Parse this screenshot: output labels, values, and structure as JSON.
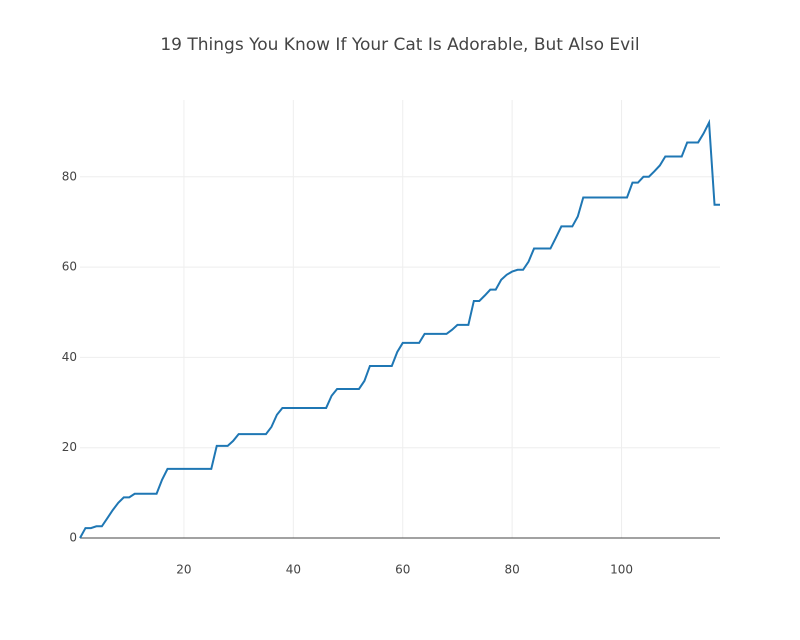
{
  "chart_data": {
    "type": "line",
    "title": "19 Things You Know If Your Cat Is Adorable, But Also Evil",
    "x": [
      1,
      2,
      3,
      4,
      5,
      6,
      7,
      8,
      9,
      10,
      11,
      12,
      13,
      14,
      15,
      16,
      17,
      18,
      19,
      20,
      21,
      22,
      23,
      24,
      25,
      26,
      27,
      28,
      29,
      30,
      31,
      32,
      33,
      34,
      35,
      36,
      37,
      38,
      39,
      40,
      41,
      42,
      43,
      44,
      45,
      46,
      47,
      48,
      49,
      50,
      51,
      52,
      53,
      54,
      55,
      56,
      57,
      58,
      59,
      60,
      61,
      62,
      63,
      64,
      65,
      66,
      67,
      68,
      69,
      70,
      71,
      72,
      73,
      74,
      75,
      76,
      77,
      78,
      79,
      80,
      81,
      82,
      83,
      84,
      85,
      86,
      87,
      88,
      89,
      90,
      91,
      92,
      93,
      94,
      95,
      96,
      97,
      98,
      99,
      100,
      101,
      102,
      103,
      104,
      105,
      106,
      107,
      108,
      109,
      110,
      111,
      112,
      113,
      114,
      115,
      116,
      117,
      118
    ],
    "series": [
      {
        "color": "#1f77b4",
        "values": [
          0,
          2.2,
          2.2,
          2.6,
          2.6,
          4.4,
          6.2,
          7.8,
          9,
          9,
          9.8,
          9.8,
          9.8,
          9.8,
          9.8,
          12.9,
          15.3,
          15.3,
          15.3,
          15.3,
          15.3,
          15.3,
          15.3,
          15.3,
          15.3,
          20.4,
          20.4,
          20.4,
          21.5,
          23,
          23,
          23,
          23,
          23,
          23,
          24.6,
          27.3,
          28.8,
          28.8,
          28.8,
          28.8,
          28.8,
          28.8,
          28.8,
          28.8,
          28.8,
          31.5,
          33,
          33,
          33,
          33,
          33,
          34.8,
          38.1,
          38.1,
          38.1,
          38.1,
          38.1,
          41.2,
          43.2,
          43.2,
          43.2,
          43.2,
          45.2,
          45.2,
          45.2,
          45.2,
          45.2,
          46.1,
          47.2,
          47.2,
          47.2,
          52.5,
          52.5,
          53.7,
          55,
          55,
          57.2,
          58.3,
          59,
          59.4,
          59.4,
          61.2,
          64.1,
          64.1,
          64.1,
          64.1,
          66.5,
          69,
          69,
          69,
          71.2,
          75.4,
          75.4,
          75.4,
          75.4,
          75.4,
          75.4,
          75.4,
          75.4,
          75.4,
          78.7,
          78.7,
          80,
          80,
          81.2,
          82.5,
          84.5,
          84.5,
          84.5,
          84.5,
          87.6,
          87.6,
          87.6,
          89.6,
          92,
          73.8,
          73.8
        ]
      }
    ],
    "xlim": [
      1,
      118
    ],
    "ylim": [
      0,
      97
    ],
    "xticks": [
      20,
      40,
      60,
      80,
      100
    ],
    "yticks": [
      0,
      20,
      40,
      60,
      80
    ],
    "grid": true
  }
}
